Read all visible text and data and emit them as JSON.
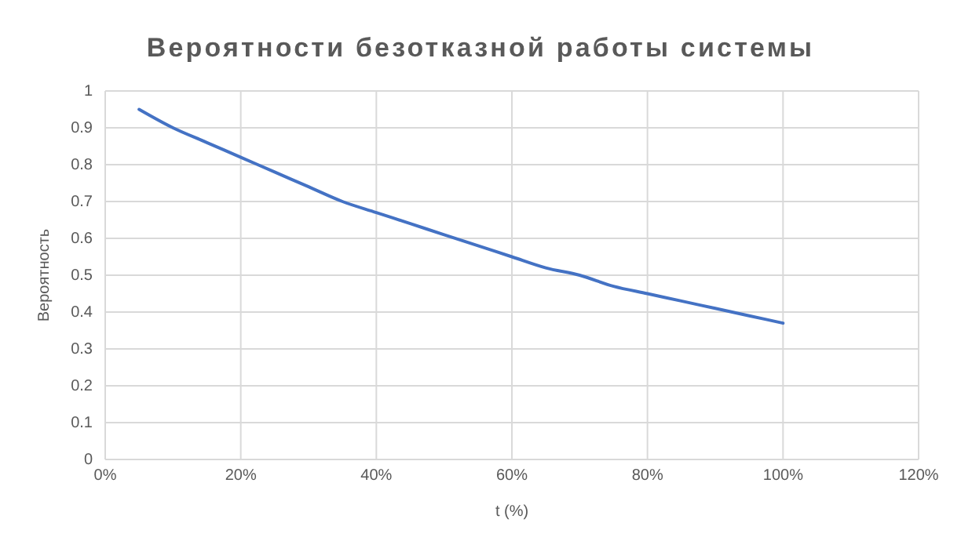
{
  "chart_data": {
    "type": "line",
    "title": "Вероятности безотказной работы системы",
    "xlabel": "t (%)",
    "ylabel": "Вероятность",
    "x": [
      5,
      10,
      15,
      20,
      25,
      30,
      35,
      40,
      45,
      50,
      55,
      60,
      65,
      70,
      75,
      80,
      85,
      90,
      95,
      100
    ],
    "series": [
      {
        "color": "#4472c4",
        "values": [
          0.95,
          0.9,
          0.86,
          0.82,
          0.78,
          0.74,
          0.7,
          0.67,
          0.64,
          0.61,
          0.58,
          0.55,
          0.52,
          0.5,
          0.47,
          0.45,
          0.43,
          0.41,
          0.39,
          0.37
        ]
      }
    ],
    "xlim": [
      0,
      120
    ],
    "xticks": [
      {
        "value": 0,
        "label": "0%"
      },
      {
        "value": 20,
        "label": "20%"
      },
      {
        "value": 40,
        "label": "40%"
      },
      {
        "value": 60,
        "label": "60%"
      },
      {
        "value": 80,
        "label": "80%"
      },
      {
        "value": 100,
        "label": "100%"
      },
      {
        "value": 120,
        "label": "120%"
      }
    ],
    "ylim": [
      0,
      1
    ],
    "yticks": [
      0,
      0.1,
      0.2,
      0.3,
      0.4,
      0.5,
      0.6,
      0.7,
      0.8,
      0.9,
      1
    ],
    "grid": true,
    "marker": "none",
    "line_style": "solid"
  }
}
